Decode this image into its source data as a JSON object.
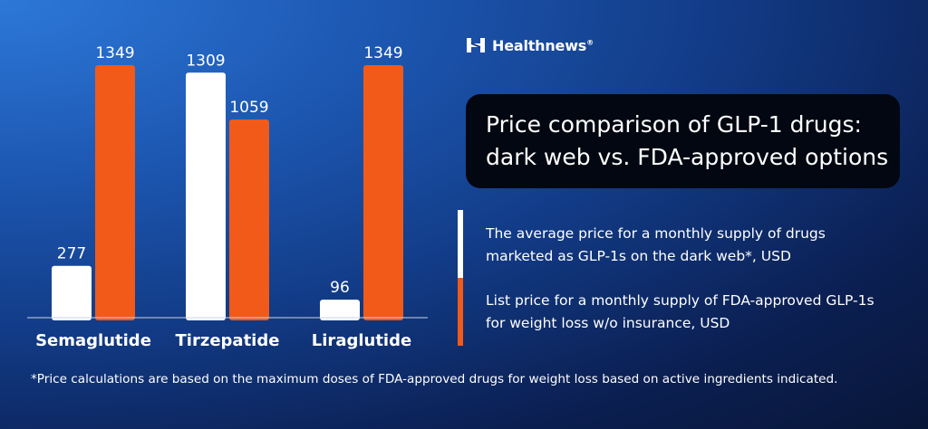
{
  "brand": {
    "name": "Healthnews",
    "mark": "®"
  },
  "title": {
    "line1": "Price comparison of GLP-1 drugs:",
    "line2": "dark web vs. FDA-approved options"
  },
  "legend": {
    "dark_web": "The average price for a monthly supply of drugs marketed as GLP-1s on the dark web*, USD",
    "fda": "List price for a monthly supply of FDA-approved GLP-1s for weight loss w/o insurance, USD"
  },
  "footnote": "*Price calculations are based on the maximum doses of FDA-approved drugs for weight loss based on active ingredients indicated.",
  "chart_data": {
    "type": "bar",
    "title": "Price comparison of GLP-1 drugs: dark web vs. FDA-approved options",
    "categories": [
      "Semaglutide",
      "Tirzepatide",
      "Liraglutide"
    ],
    "series": [
      {
        "name": "Dark web average price (USD)",
        "color": "#ffffff",
        "values": [
          277,
          1309,
          96
        ]
      },
      {
        "name": "FDA-approved list price (USD)",
        "color": "#f15a19",
        "values": [
          1349,
          1059,
          1349
        ]
      }
    ],
    "xlabel": "",
    "ylabel": "",
    "ylim": [
      0,
      1349
    ],
    "grid": false
  }
}
